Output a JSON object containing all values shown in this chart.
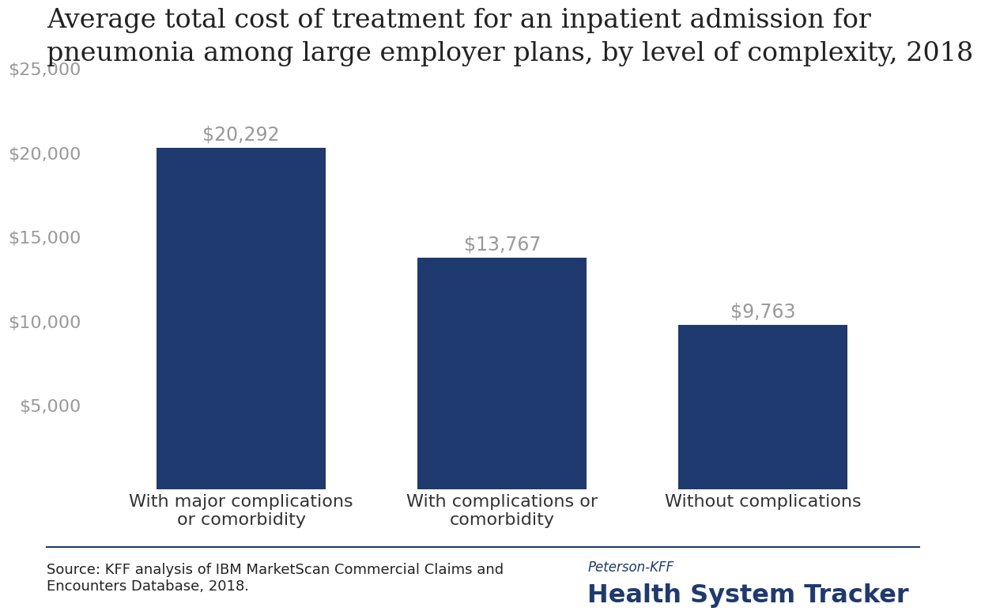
{
  "title": "Average total cost of treatment for an inpatient admission for\npneumonia among large employer plans, by level of complexity, 2018",
  "categories": [
    "With major complications\nor comorbidity",
    "With complications or\ncomorbidity",
    "Without complications"
  ],
  "values": [
    20292,
    13767,
    9763
  ],
  "bar_labels": [
    "$20,292",
    "$13,767",
    "$9,763"
  ],
  "bar_color": "#1e3a6e",
  "ylim": [
    0,
    25000
  ],
  "yticks": [
    0,
    5000,
    10000,
    15000,
    20000,
    25000
  ],
  "ytick_labels": [
    "",
    "$5,000",
    "$10,000",
    "$15,000",
    "$20,000",
    "$25,000"
  ],
  "source_text": "Source: KFF analysis of IBM MarketScan Commercial Claims and\nEncounters Database, 2018.",
  "peterson_kff_text": "Peterson-KFF",
  "health_system_tracker_text": "Health System Tracker",
  "background_color": "#ffffff",
  "bar_label_color": "#999999",
  "axis_label_color": "#999999",
  "title_color": "#222222",
  "title_fontsize": 24,
  "bar_label_fontsize": 17,
  "ytick_fontsize": 16,
  "xtick_fontsize": 16,
  "source_fontsize": 13,
  "footer_line_color": "#1e3a6e",
  "peterson_kff_color": "#1e3a6e",
  "health_tracker_color": "#1e3a6e"
}
